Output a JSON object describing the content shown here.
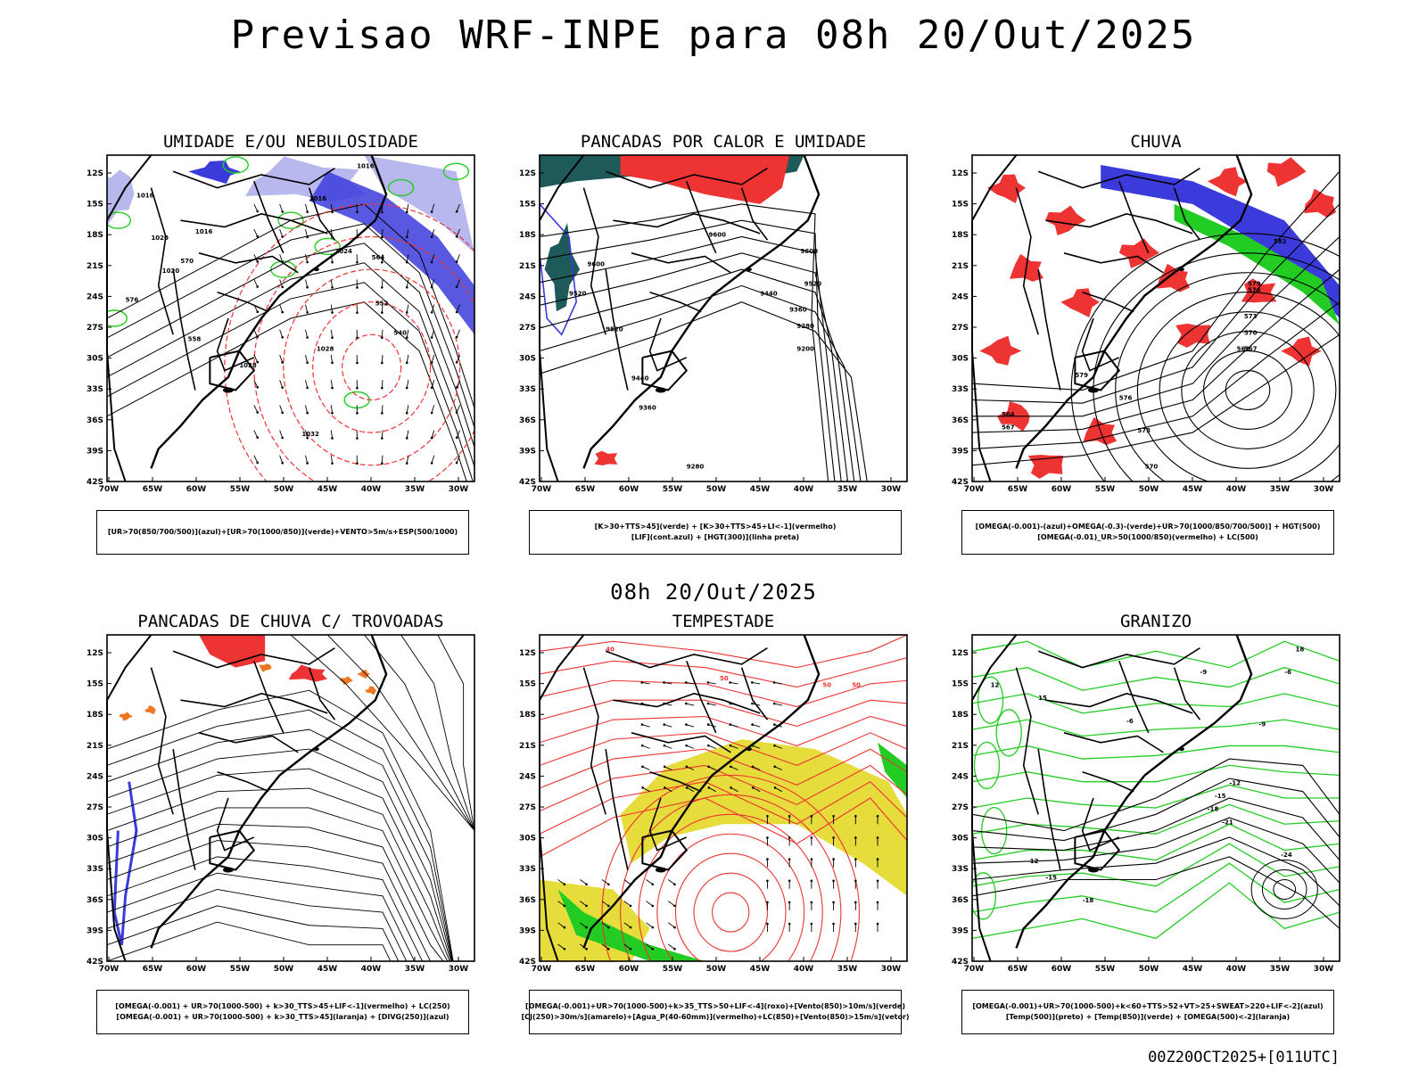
{
  "main_title": "Previsao WRF-INPE  para 08h 20/Out/2025",
  "middle_title": "08h 20/Out/2025",
  "footer_stamp": "00Z20OCT2025+[011UTC]",
  "axes": {
    "lat_labels": [
      "12S",
      "15S",
      "18S",
      "21S",
      "24S",
      "27S",
      "30S",
      "33S",
      "36S",
      "39S",
      "42S"
    ],
    "lon_labels": [
      "70W",
      "65W",
      "60W",
      "55W",
      "50W",
      "45W",
      "40W",
      "35W",
      "30W"
    ]
  },
  "colors": {
    "humidity_blue": "#3b3bdc",
    "humidity_lightblue": "#b8b8ee",
    "green": "#22cc22",
    "red": "#ee3333",
    "orange": "#ee7722",
    "yellow": "#e6dc3c",
    "teal": "#1e5a5a"
  },
  "panels": [
    {
      "title": "UMIDADE E/OU NEBULOSIDADE",
      "legend": [
        "[UR>70(850/700/500)](azul)+[UR>70(1000/850)](verde)+VENTO>5m/s+ESP(500/1000)"
      ],
      "contour_labels": [
        "1016",
        "1016",
        "1016",
        "1020",
        "1020",
        "1024",
        "1028",
        "1028",
        "1032",
        "570",
        "576",
        "564",
        "552",
        "540",
        "558",
        "1016"
      ]
    },
    {
      "title": "PANCADAS POR CALOR E UMIDADE",
      "legend": [
        "[K>30+TTS>45](verde) + [K>30+TTS>45+LI<-1](vermelho)",
        "[LIF](cont.azul) + [HGT(300)](linha preta)"
      ],
      "contour_labels": [
        "9600",
        "9600",
        "9600",
        "9520",
        "9520",
        "9520",
        "9440",
        "9440",
        "9360",
        "9360",
        "9280",
        "9280",
        "9200"
      ]
    },
    {
      "title": "CHUVA",
      "legend": [
        "[OMEGA(-0.001)-(azul)+OMEGA(-0.3)-(verde)+UR>70(1000/850/700/500)] + HGT(500)",
        "[OMEGA(-0.01)_UR>50(1000/850)(vermelho) + LC(500)"
      ],
      "contour_labels": [
        "579",
        "576",
        "573",
        "570",
        "567",
        "564",
        "561",
        "582",
        "579",
        "576",
        "573",
        "570",
        "567"
      ]
    },
    {
      "title": "PANCADAS DE CHUVA C/ TROVOADAS",
      "legend": [
        "[OMEGA(-0.001) + UR>70(1000-500) + k>30_TTS>45+LIF<-1](vermelho) + LC(250)",
        "[OMEGA(-0.001) + UR>70(1000-500) + k>30_TTS>45](laranja) + [DIVG(250)](azul)"
      ],
      "contour_labels": []
    },
    {
      "title": "TEMPESTADE",
      "legend": [
        "[OMEGA(-0.001)+UR>70(1000-500)+k>35_TTS>50+LIF<-4](roxo)+[Vento(850)>10m/s](verde)",
        "[CJ(250)>30m/s](amarelo)+[Agua_P(40-60mm)](vermelho)+LC(850)+[Vento(850)>15m/s](vetor)"
      ],
      "contour_labels": [
        "40",
        "50",
        "50",
        "50"
      ]
    },
    {
      "title": "GRANIZO",
      "legend": [
        "[OMEGA(-0.001)+UR>70(1000-500)+k<60+TTS>52+VT>25+SWEAT>220+LIF<-2](azul)",
        "[Temp(500)](preto) + [Temp(850)](verde) + [OMEGA(500)<-2](laranja)"
      ],
      "contour_labels": [
        "-9",
        "-6",
        "-6",
        "-9",
        "-12",
        "-15",
        "-18",
        "-21",
        "-24",
        "-12",
        "-15",
        "-18",
        "15",
        "18",
        "12"
      ]
    }
  ]
}
